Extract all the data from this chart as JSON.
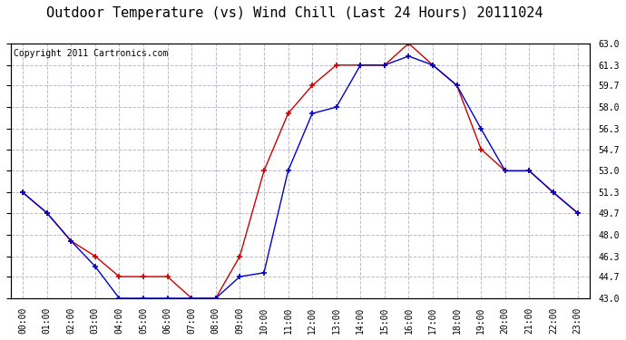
{
  "title": "Outdoor Temperature (vs) Wind Chill (Last 24 Hours) 20111024",
  "copyright": "Copyright 2011 Cartronics.com",
  "x_labels": [
    "00:00",
    "01:00",
    "02:00",
    "03:00",
    "04:00",
    "05:00",
    "06:00",
    "07:00",
    "08:00",
    "09:00",
    "10:00",
    "11:00",
    "12:00",
    "13:00",
    "14:00",
    "15:00",
    "16:00",
    "17:00",
    "18:00",
    "19:00",
    "20:00",
    "21:00",
    "22:00",
    "23:00"
  ],
  "temp_red": [
    51.3,
    49.7,
    47.5,
    46.3,
    44.7,
    44.7,
    44.7,
    43.0,
    43.0,
    46.3,
    53.0,
    57.5,
    59.7,
    61.3,
    61.3,
    61.3,
    63.0,
    61.3,
    59.7,
    54.7,
    53.0,
    53.0,
    51.3,
    49.7
  ],
  "temp_blue": [
    51.3,
    49.7,
    47.5,
    45.5,
    43.0,
    43.0,
    43.0,
    43.0,
    43.0,
    44.7,
    45.0,
    53.0,
    57.5,
    58.0,
    61.3,
    61.3,
    62.0,
    61.3,
    59.7,
    56.3,
    53.0,
    53.0,
    51.3,
    49.7
  ],
  "ylim_min": 43.0,
  "ylim_max": 63.0,
  "yticks": [
    43.0,
    44.7,
    46.3,
    48.0,
    49.7,
    51.3,
    53.0,
    54.7,
    56.3,
    58.0,
    59.7,
    61.3,
    63.0
  ],
  "red_color": "#cc0000",
  "blue_color": "#0000cc",
  "bg_color": "#ffffff",
  "grid_color": "#bbbbcc",
  "title_fontsize": 11,
  "copyright_fontsize": 7,
  "tick_fontsize": 7
}
